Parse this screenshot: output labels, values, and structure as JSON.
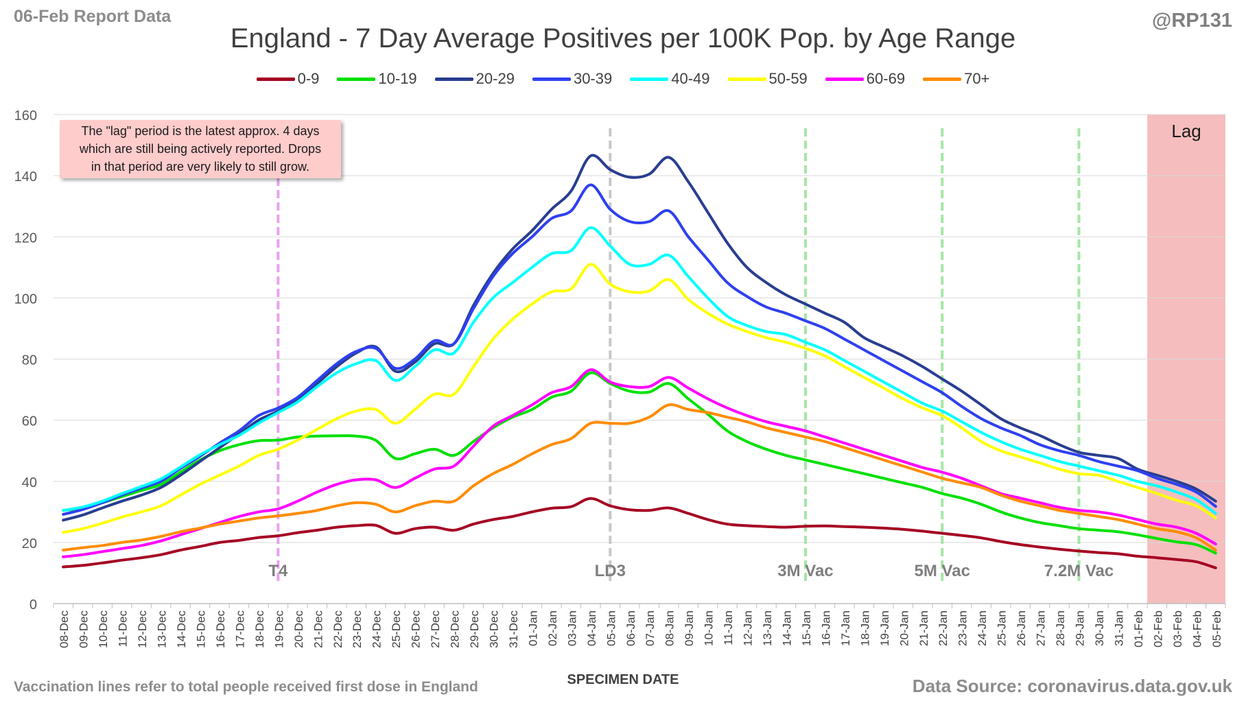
{
  "header": {
    "report_date": "06-Feb Report Data",
    "handle": "@RP131"
  },
  "footer": {
    "footnote": "Vaccination lines refer to total people received first dose in England",
    "source": "Data Source: coronavirus.data.gov.uk"
  },
  "note": {
    "lines": [
      "The \"lag\" period is the latest approx. 4 days",
      "which are still being actively reported.  Drops",
      "in that period are very likely to still grow."
    ],
    "background": "#ffcccc"
  },
  "chart_data": {
    "type": "line",
    "title": "England - 7 Day Average Positives per 100K Pop. by Age Range",
    "xlabel": "SPECIMEN DATE",
    "ylabel": "",
    "ylim": [
      0,
      160
    ],
    "yticks": [
      0,
      20,
      40,
      60,
      80,
      100,
      120,
      140,
      160
    ],
    "grid": true,
    "legend_position": "top",
    "categories": [
      "08-Dec",
      "09-Dec",
      "10-Dec",
      "11-Dec",
      "12-Dec",
      "13-Dec",
      "14-Dec",
      "15-Dec",
      "16-Dec",
      "17-Dec",
      "18-Dec",
      "19-Dec",
      "20-Dec",
      "21-Dec",
      "22-Dec",
      "23-Dec",
      "24-Dec",
      "25-Dec",
      "26-Dec",
      "27-Dec",
      "28-Dec",
      "29-Dec",
      "30-Dec",
      "31-Dec",
      "01-Jan",
      "02-Jan",
      "03-Jan",
      "04-Jan",
      "05-Jan",
      "06-Jan",
      "07-Jan",
      "08-Jan",
      "09-Jan",
      "10-Jan",
      "11-Jan",
      "12-Jan",
      "13-Jan",
      "14-Jan",
      "15-Jan",
      "16-Jan",
      "17-Jan",
      "18-Jan",
      "19-Jan",
      "20-Jan",
      "21-Jan",
      "22-Jan",
      "23-Jan",
      "24-Jan",
      "25-Jan",
      "26-Jan",
      "27-Jan",
      "28-Jan",
      "29-Jan",
      "30-Jan",
      "31-Jan",
      "01-Feb",
      "02-Feb",
      "03-Feb",
      "04-Feb",
      "05-Feb"
    ],
    "series": [
      {
        "name": "0-9",
        "color": "#a50021",
        "values": [
          12,
          12.5,
          13.3,
          14.2,
          15,
          16,
          17.5,
          18.7,
          20,
          20.7,
          21.6,
          22.2,
          23.2,
          24,
          25,
          25.5,
          25.6,
          23,
          24.5,
          25,
          24,
          26,
          27.5,
          28.5,
          30,
          31.2,
          31.7,
          34.4,
          32,
          30.7,
          30.5,
          31.3,
          29.5,
          27.5,
          26,
          25.5,
          25.2,
          25,
          25.3,
          25.4,
          25.2,
          25,
          24.7,
          24.3,
          23.7,
          23,
          22.3,
          21.5,
          20.3,
          19.3,
          18.5,
          17.8,
          17.2,
          16.7,
          16.3,
          15.5,
          15,
          14.4,
          13.7,
          11.7
        ]
      },
      {
        "name": "10-19",
        "color": "#00e000",
        "values": [
          30.5,
          31.3,
          33,
          35,
          37,
          39,
          43,
          47,
          50,
          52,
          53.3,
          53.5,
          54.5,
          54.8,
          54.9,
          54.8,
          53.4,
          47.5,
          49,
          50.5,
          48.5,
          53,
          57.5,
          61,
          63.5,
          67.5,
          69.5,
          75.5,
          72,
          69.5,
          69.2,
          72,
          67,
          62,
          56.5,
          53,
          50.5,
          48.5,
          47,
          45.5,
          44,
          42.5,
          41,
          39.5,
          38,
          36,
          34.5,
          32.5,
          30,
          28,
          26.5,
          25.5,
          24.5,
          24,
          23.5,
          22.5,
          21.3,
          20.2,
          19.3,
          16.5
        ]
      },
      {
        "name": "20-29",
        "color": "#293e90",
        "values": [
          27.3,
          29,
          31.3,
          33.5,
          35.5,
          38,
          42,
          46.5,
          51,
          55.5,
          60,
          63,
          66.5,
          72,
          77.5,
          82,
          84,
          76,
          79,
          85,
          85,
          97.5,
          108,
          116,
          122,
          129,
          135,
          146.5,
          142,
          139.5,
          140.5,
          146,
          138,
          128,
          118,
          110,
          105,
          101,
          98,
          95,
          92,
          87,
          84,
          81,
          77.5,
          73.5,
          69.5,
          65,
          60.5,
          57.5,
          55,
          52,
          49.5,
          48.5,
          47.5,
          44,
          42,
          40,
          37.5,
          33.5
        ]
      },
      {
        "name": "30-39",
        "color": "#2e40f0",
        "values": [
          29.2,
          30.8,
          33,
          35.5,
          37.8,
          40,
          44.2,
          48.2,
          52.5,
          56.5,
          61.5,
          64,
          67.5,
          73,
          78.5,
          82.5,
          83.5,
          77,
          80,
          86,
          85,
          96.5,
          107,
          114.5,
          120,
          126,
          128.5,
          137,
          129,
          125,
          125,
          128.5,
          120,
          112.5,
          105,
          100.5,
          97,
          95,
          92.5,
          90,
          86.5,
          83,
          79.5,
          76,
          72.5,
          69,
          64.5,
          60.5,
          57.5,
          55,
          52,
          50,
          48.5,
          46.5,
          45,
          43.5,
          41,
          39,
          36.5,
          31.8
        ]
      },
      {
        "name": "40-49",
        "color": "#00ffff",
        "values": [
          30.5,
          31.6,
          33.5,
          36,
          38.3,
          40.8,
          44.7,
          48.7,
          52,
          55,
          59,
          62.5,
          66,
          71,
          75.5,
          78.5,
          79.5,
          73,
          77.5,
          83,
          82,
          92,
          100,
          105,
          110,
          114.5,
          115.5,
          123,
          117,
          111,
          111,
          114,
          107,
          100,
          94,
          91,
          89,
          88,
          85.5,
          83,
          79.5,
          76,
          72.5,
          69,
          65.5,
          63,
          59.5,
          56,
          53,
          50.5,
          48.5,
          46.5,
          45,
          43.5,
          42,
          40,
          38.5,
          36.5,
          34,
          29.5
        ]
      },
      {
        "name": "50-59",
        "color": "#ffff00",
        "values": [
          23.3,
          24.5,
          26.3,
          28.3,
          30,
          32,
          35.5,
          39,
          42,
          45,
          48.5,
          50.5,
          53.5,
          57,
          60.5,
          63,
          63.5,
          59,
          63.5,
          68.5,
          68.5,
          77.5,
          86.5,
          93,
          98,
          102,
          103,
          111,
          104.5,
          102,
          102.3,
          106,
          99.5,
          95,
          91.5,
          89,
          87,
          85.5,
          83.5,
          81,
          77.5,
          74,
          70.5,
          67,
          64,
          61.5,
          57.5,
          53,
          50,
          48,
          46,
          44,
          42.5,
          42,
          40,
          38,
          36,
          33.8,
          32,
          28
        ]
      },
      {
        "name": "60-69",
        "color": "#ff00ff",
        "values": [
          15.3,
          16,
          17,
          18,
          19,
          20.5,
          22.5,
          24.5,
          26.5,
          28.5,
          30,
          31,
          33.5,
          36.5,
          39,
          40.5,
          40.5,
          38,
          41,
          44,
          45,
          51.5,
          58,
          61.5,
          65,
          69,
          71,
          76.5,
          72.5,
          71,
          71,
          74,
          70.5,
          67,
          64,
          61.5,
          59.5,
          58,
          56.5,
          54.5,
          52.5,
          50.5,
          48.5,
          46.5,
          44.5,
          43,
          41,
          38.5,
          36,
          34.5,
          33,
          31.5,
          30.5,
          30,
          29,
          27.5,
          26,
          25,
          23,
          19.5
        ]
      },
      {
        "name": "70+",
        "color": "#ff8c00",
        "values": [
          17.5,
          18.3,
          19,
          20,
          20.8,
          22,
          23.5,
          24.7,
          26,
          27,
          28,
          28.7,
          29.5,
          30.5,
          32,
          33,
          32.5,
          30,
          32,
          33.5,
          33.5,
          38.5,
          42.5,
          45.5,
          49,
          52,
          54,
          59,
          59,
          59,
          61,
          65,
          63.5,
          62.5,
          61,
          59.5,
          57.5,
          56,
          54.5,
          53,
          51,
          49,
          47,
          45,
          43,
          41,
          39.5,
          38,
          35.5,
          33.5,
          32,
          30.5,
          29.5,
          28.5,
          27.5,
          26,
          24.5,
          23.5,
          21.5,
          17.5
        ]
      }
    ],
    "reference_lines": [
      {
        "label": "T4",
        "date": "19-Dec",
        "color": "#e6a3ee"
      },
      {
        "label": "LD3",
        "date": "05-Jan",
        "color": "#c8c8c8"
      },
      {
        "label": "3M Vac",
        "date": "15-Jan",
        "color": "#a6e6a6"
      },
      {
        "label": "5M Vac",
        "date": "22-Jan",
        "color": "#a6e6a6"
      },
      {
        "label": "7.2M Vac",
        "date": "29-Jan",
        "color": "#a6e6a6"
      }
    ],
    "lag_region": {
      "label": "Lag",
      "from": "02-Feb",
      "to": "05-Feb",
      "color": "#f4b6b6"
    }
  }
}
